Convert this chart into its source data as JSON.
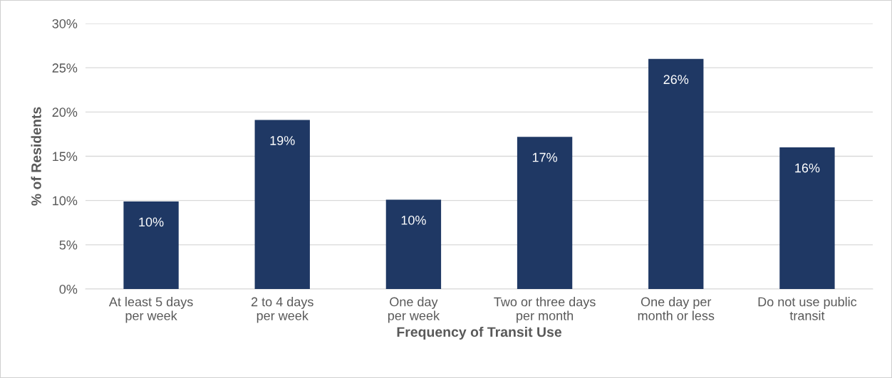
{
  "chart_data": {
    "type": "bar",
    "xlabel": "Frequency of Transit Use",
    "ylabel": "% of Residents",
    "categories": [
      "At least 5 days\nper week",
      "2 to 4 days\nper week",
      "One day\nper week",
      "Two or three days\nper month",
      "One day per\nmonth or less",
      "Do not use public\ntransit"
    ],
    "values": [
      9.9,
      19.1,
      10.1,
      17.2,
      26.0,
      16.0
    ],
    "value_labels": [
      "10%",
      "19%",
      "10%",
      "17%",
      "26%",
      "16%"
    ],
    "color": "#1f3864",
    "ylim": [
      0,
      30
    ],
    "yticks": [
      {
        "value": 0,
        "label": "0%"
      },
      {
        "value": 5,
        "label": "5%"
      },
      {
        "value": 10,
        "label": "10%"
      },
      {
        "value": 15,
        "label": "15%"
      },
      {
        "value": 20,
        "label": "20%"
      },
      {
        "value": 25,
        "label": "25%"
      },
      {
        "value": 30,
        "label": "30%"
      }
    ],
    "grid": "y",
    "legend": false
  }
}
